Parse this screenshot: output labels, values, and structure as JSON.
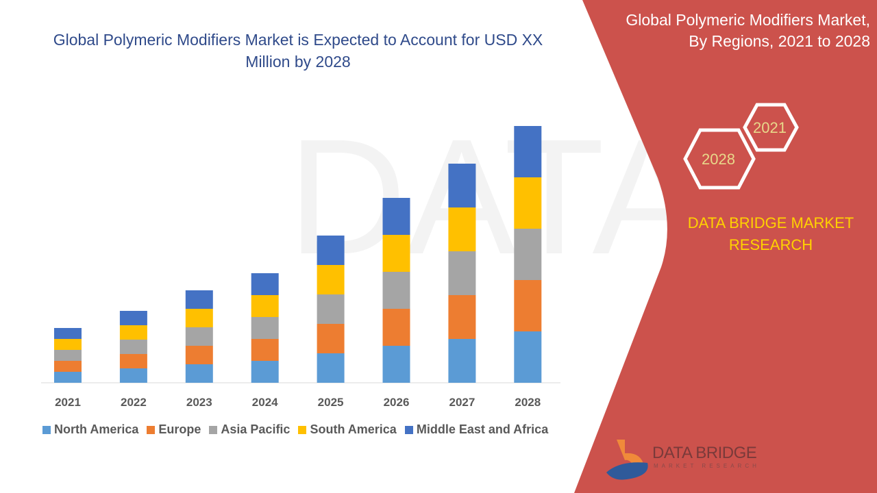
{
  "title": "Global Polymeric Modifiers Market is Expected to Account for USD XX Million by 2028",
  "side_panel": {
    "title_line1": "Global Polymeric Modifiers Market,",
    "title_line2": "By Regions, 2021 to 2028",
    "hex_year_start": "2021",
    "hex_year_end": "2028",
    "brand_line1": "DATA BRIDGE MARKET",
    "brand_line2": "RESEARCH",
    "logo_text": "DATA BRIDGE",
    "logo_subtext": "MARKET RESEARCH",
    "panel_color": "#cc524c"
  },
  "chart_data": {
    "type": "bar",
    "stacked": true,
    "title": "Global Polymeric Modifiers Market is Expected to Account for USD XX Million by 2028",
    "xlabel": "",
    "ylabel": "",
    "y_axis_shown": false,
    "grid": false,
    "legend_position": "bottom",
    "categories": [
      "2021",
      "2022",
      "2023",
      "2024",
      "2025",
      "2026",
      "2027",
      "2028"
    ],
    "series": [
      {
        "name": "North America",
        "color": "#5b9bd5",
        "values": [
          16,
          21,
          27,
          32,
          43,
          54,
          64,
          75
        ]
      },
      {
        "name": "Europe",
        "color": "#ed7d31",
        "values": [
          16,
          21,
          27,
          32,
          43,
          54,
          64,
          75
        ]
      },
      {
        "name": "Asia Pacific",
        "color": "#a5a5a5",
        "values": [
          16,
          21,
          27,
          32,
          43,
          54,
          64,
          75
        ]
      },
      {
        "name": "South America",
        "color": "#ffc000",
        "values": [
          16,
          21,
          27,
          32,
          43,
          54,
          64,
          75
        ]
      },
      {
        "name": "Middle East and Africa",
        "color": "#4472c4",
        "values": [
          16,
          21,
          27,
          32,
          43,
          54,
          64,
          75
        ]
      }
    ]
  }
}
